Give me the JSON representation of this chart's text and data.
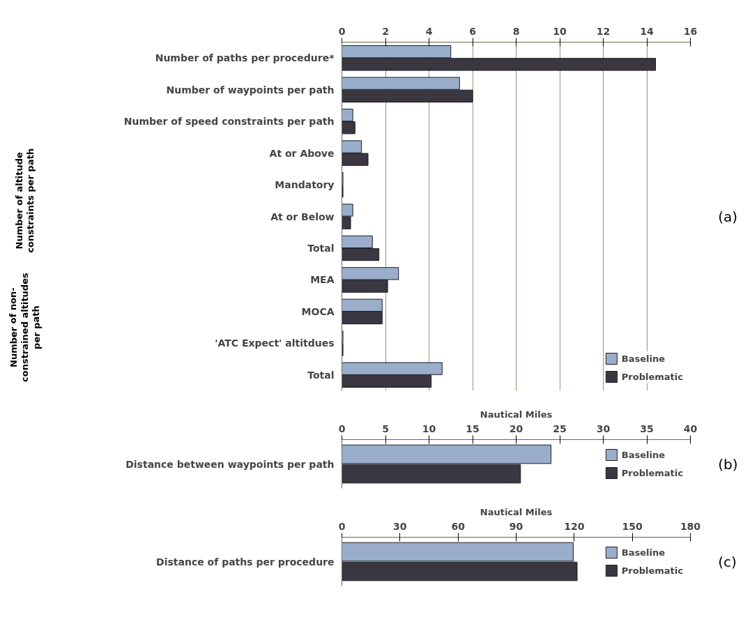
{
  "chart_data": [
    {
      "type": "bar",
      "orientation": "horizontal",
      "categories": [
        "Number of paths per procedure*",
        "Number of waypoints per path",
        "Number of speed constraints per path",
        "At or Above",
        "Mandatory",
        "At or Below",
        "Total",
        "MEA",
        "MOCA",
        "'ATC Expect' altitdues",
        "Total"
      ],
      "series": [
        {
          "name": "Baseline",
          "color": "#9aaecb",
          "values": [
            5.0,
            5.4,
            0.5,
            0.9,
            0.05,
            0.5,
            1.4,
            2.6,
            1.85,
            0.05,
            4.6
          ]
        },
        {
          "name": "Problematic",
          "color": "#3a3740",
          "values": [
            14.4,
            6.0,
            0.6,
            1.2,
            0.05,
            0.4,
            1.7,
            2.1,
            1.85,
            0.05,
            4.1
          ]
        }
      ],
      "xlim": [
        0,
        16
      ],
      "xticks": [
        0,
        2,
        4,
        6,
        8,
        10,
        12,
        14,
        16
      ],
      "grid": "x",
      "legend": "bottom right",
      "annotations": [
        "Number of altitude constraints per path",
        "Number of non-constrained altitudes per path",
        "(a)"
      ]
    },
    {
      "type": "bar",
      "orientation": "horizontal",
      "categories": [
        "Distance between waypoints per path"
      ],
      "xlabel": "Nautical Miles",
      "series": [
        {
          "name": "Baseline",
          "color": "#9aaecb",
          "values": [
            24.0
          ]
        },
        {
          "name": "Problematic",
          "color": "#3a3740",
          "values": [
            20.5
          ]
        }
      ],
      "xlim": [
        0,
        40
      ],
      "xticks": [
        0,
        5,
        10,
        15,
        20,
        25,
        30,
        35,
        40
      ],
      "legend": "right",
      "annotations": [
        "(b)"
      ]
    },
    {
      "type": "bar",
      "orientation": "horizontal",
      "categories": [
        "Distance of paths per procedure"
      ],
      "xlabel": "Nautical Miles",
      "series": [
        {
          "name": "Baseline",
          "color": "#9aaecb",
          "values": [
            119.5
          ]
        },
        {
          "name": "Problematic",
          "color": "#3a3740",
          "values": [
            121.5
          ]
        }
      ],
      "xlim": [
        0,
        180
      ],
      "xticks": [
        0,
        30,
        60,
        90,
        120,
        150,
        180
      ],
      "legend": "right",
      "annotations": [
        "(c)"
      ]
    }
  ]
}
